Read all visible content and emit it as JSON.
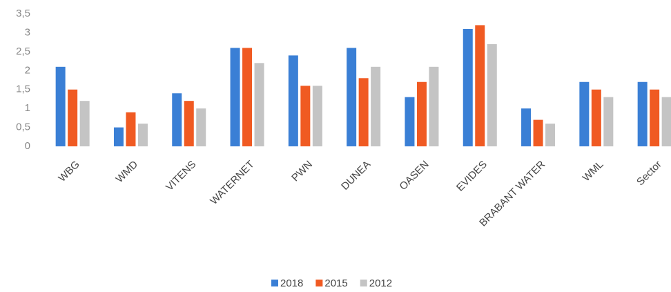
{
  "chart_data": {
    "type": "bar",
    "categories": [
      "WBG",
      "WMD",
      "VITENS",
      "WATERNET",
      "PWN",
      "DUNEA",
      "OASEN",
      "EVIDES",
      "BRABANT WATER",
      "WML",
      "Sector"
    ],
    "series": [
      {
        "name": "2018",
        "color": "#3a7fd5",
        "values": [
          2.1,
          0.5,
          1.4,
          2.6,
          2.4,
          2.6,
          1.3,
          3.1,
          1.0,
          1.7,
          1.7
        ]
      },
      {
        "name": "2015",
        "color": "#f05a22",
        "values": [
          1.5,
          0.9,
          1.2,
          2.6,
          1.6,
          1.8,
          1.7,
          3.2,
          0.7,
          1.5,
          1.5
        ]
      },
      {
        "name": "2012",
        "color": "#c4c4c4",
        "values": [
          1.2,
          0.6,
          1.0,
          2.2,
          1.6,
          2.1,
          2.1,
          2.7,
          0.6,
          1.3,
          1.3
        ]
      }
    ],
    "ylim": [
      0,
      3.5
    ],
    "yticks": [
      0,
      {
        "value": 0.5,
        "label": "0,5"
      },
      1,
      {
        "value": 1.5,
        "label": "1,5"
      },
      2,
      {
        "value": 2.5,
        "label": "2,5"
      },
      3,
      {
        "value": 3.5,
        "label": "3,5"
      }
    ],
    "grid": false,
    "legend": "bottom"
  }
}
